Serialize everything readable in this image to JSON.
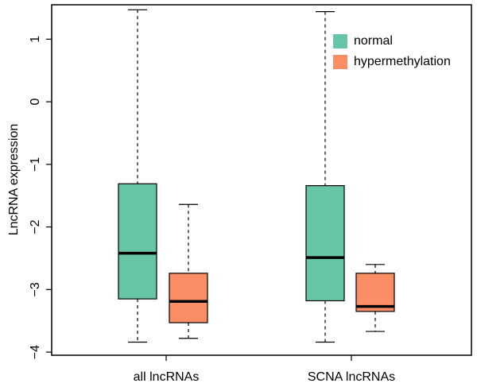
{
  "chart_data": {
    "type": "boxplot",
    "ylabel": "LncRNA expression",
    "xlabel": "",
    "ylim": [
      -4.05,
      1.55
    ],
    "yticks": [
      1,
      0,
      -1,
      -2,
      -3,
      -4
    ],
    "ytick_labels": [
      "1",
      "0",
      "−1",
      "−2",
      "−3",
      "−4"
    ],
    "categories": [
      "all lncRNAs",
      "SCNA lncRNAs"
    ],
    "series": [
      {
        "name": "normal",
        "color": "#66c5a6",
        "boxes": [
          {
            "whisker_low": -3.84,
            "q1": -3.15,
            "median": -2.42,
            "q3": -1.31,
            "whisker_high": 1.47
          },
          {
            "whisker_low": -3.84,
            "q1": -3.18,
            "median": -2.49,
            "q3": -1.34,
            "whisker_high": 1.44
          }
        ]
      },
      {
        "name": "hypermethylation",
        "color": "#fc8e65",
        "boxes": [
          {
            "whisker_low": -3.78,
            "q1": -3.53,
            "median": -3.19,
            "q3": -2.74,
            "whisker_high": -1.64
          },
          {
            "whisker_low": -3.67,
            "q1": -3.35,
            "median": -3.27,
            "q3": -2.74,
            "whisker_high": -2.6
          }
        ]
      }
    ],
    "legend": {
      "position": "top-right",
      "entries": [
        "normal",
        "hypermethylation"
      ]
    }
  }
}
